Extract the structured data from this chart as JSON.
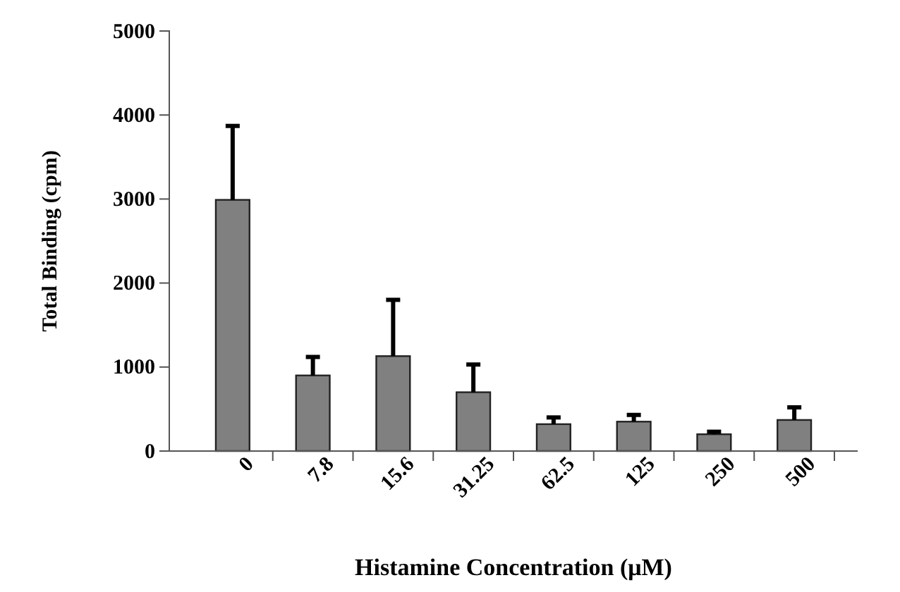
{
  "chart_data": {
    "type": "bar",
    "xlabel": "Histamine Concentration (μM)",
    "ylabel": "Total Binding (cpm)",
    "categories": [
      "0",
      "7.8",
      "15.6",
      "31.25",
      "62.5",
      "125",
      "250",
      "500"
    ],
    "values": [
      2990,
      900,
      1130,
      700,
      320,
      350,
      200,
      370
    ],
    "errors": [
      880,
      220,
      670,
      330,
      80,
      80,
      30,
      150
    ],
    "color": "#808080",
    "ylim": [
      0,
      5000
    ],
    "yticks": [
      0,
      1000,
      2000,
      3000,
      4000,
      5000
    ],
    "grid": false
  }
}
